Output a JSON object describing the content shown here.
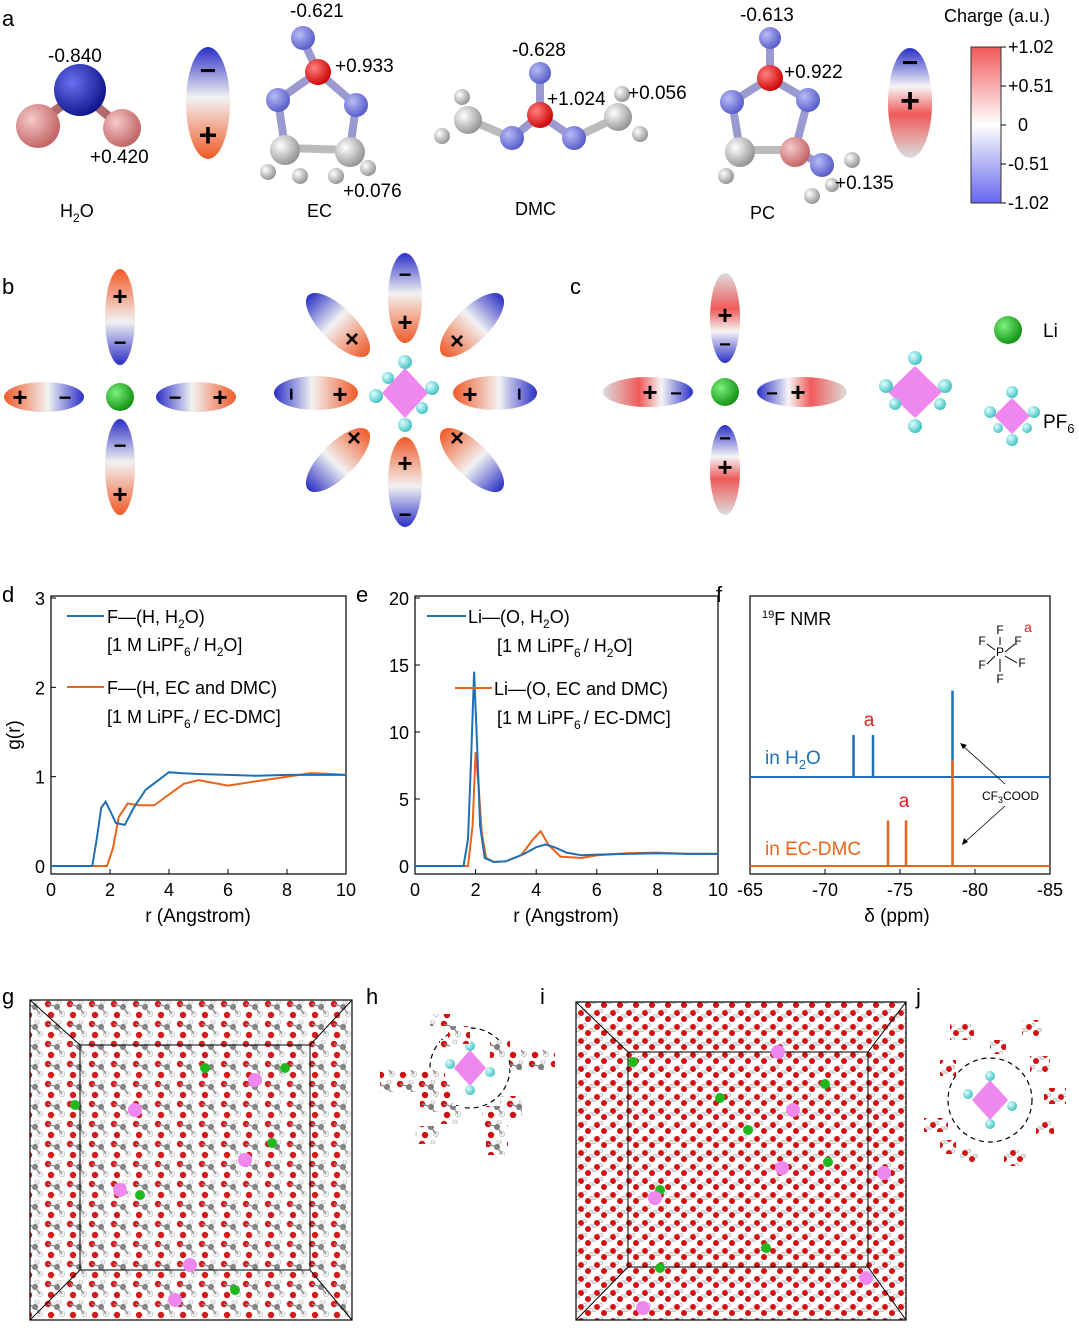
{
  "panel_labels": {
    "a": "a",
    "b": "b",
    "c": "c",
    "d": "d",
    "e": "e",
    "f": "f",
    "g": "g",
    "h": "h",
    "i": "i",
    "j": "j"
  },
  "colors": {
    "blue_series": "#1f6fb4",
    "orange_series": "#e8641c",
    "neg": "#2a2fc6",
    "pos": "#f05a28",
    "anno_red": "#e0201b",
    "li": "#1fb81f",
    "pf6_core": "#ee88ee",
    "pf6_f": "#7fe6e6"
  },
  "molecules": {
    "h2o": {
      "name": "H",
      "sub": "2",
      "name2": "O",
      "charges": [
        "-0.840",
        "+0.420"
      ]
    },
    "ec": {
      "name": "EC",
      "charges": [
        "-0.621",
        "+0.933",
        "+0.076"
      ]
    },
    "dmc": {
      "name": "DMC",
      "charges": [
        "-0.628",
        "+1.024",
        "+0.056"
      ]
    },
    "pc": {
      "name": "PC",
      "charges": [
        "-0.613",
        "+0.922",
        "+0.135"
      ]
    }
  },
  "colorbar": {
    "title": "Charge (a.u.)",
    "ticks": [
      "+1.02",
      "+0.51",
      "0",
      "-0.51",
      "-1.02"
    ]
  },
  "dipole_symbols": {
    "plus": "+",
    "minus": "−",
    "cross": "×"
  },
  "legend_species": {
    "li": "Li",
    "pf6": "PF",
    "pf6_sub": "6"
  },
  "chart_data": [
    {
      "id": "d",
      "type": "line",
      "xlabel": "r (Angstrom)",
      "ylabel": "g(r)",
      "xlim": [
        0,
        10
      ],
      "ylim": [
        0,
        3
      ],
      "xticks": [
        0,
        2,
        4,
        6,
        8,
        10
      ],
      "yticks": [
        0,
        1,
        2,
        3
      ],
      "series": [
        {
          "legend_l1": "F—(H, H",
          "legend_l1_sub": "2",
          "legend_l1_end": "O)",
          "legend_l2": "[1 M LiPF",
          "legend_l2_sub": "6",
          "legend_l2_end": "/ H",
          "legend_l2_sub2": "2",
          "legend_l2_end2": "O]",
          "x": [
            0,
            1.4,
            1.55,
            1.7,
            1.85,
            2.0,
            2.2,
            2.5,
            2.8,
            3.2,
            3.6,
            4.0,
            4.4,
            5.0,
            6.0,
            7.0,
            8.0,
            9.0,
            10.0
          ],
          "y": [
            0,
            0,
            0.3,
            0.65,
            0.72,
            0.62,
            0.48,
            0.46,
            0.65,
            0.85,
            0.95,
            1.05,
            1.04,
            1.03,
            1.02,
            1.01,
            1.02,
            1.02,
            1.02
          ]
        },
        {
          "legend_l1": "F—(H, EC and DMC)",
          "legend_l2": "[1 M LiPF",
          "legend_l2_sub": "6",
          "legend_l2_end": "/ EC-DMC]",
          "x": [
            0,
            1.9,
            2.1,
            2.3,
            2.6,
            3.0,
            3.5,
            4.0,
            4.5,
            5.0,
            5.5,
            6.0,
            7.0,
            8.0,
            8.8,
            9.5,
            10.0
          ],
          "y": [
            0,
            0,
            0.2,
            0.55,
            0.7,
            0.68,
            0.68,
            0.8,
            0.92,
            0.96,
            0.93,
            0.9,
            0.95,
            1.0,
            1.04,
            1.03,
            1.02
          ]
        }
      ]
    },
    {
      "id": "e",
      "type": "line",
      "xlabel": "r (Angstrom)",
      "ylabel": "",
      "xlim": [
        0,
        10
      ],
      "ylim": [
        0,
        20
      ],
      "xticks": [
        0,
        2,
        4,
        6,
        8,
        10
      ],
      "yticks": [
        0,
        5,
        10,
        15,
        20
      ],
      "series": [
        {
          "legend_l1": "Li—(O, H",
          "legend_l1_sub": "2",
          "legend_l1_end": "O)",
          "legend_l2": "[1 M LiPF",
          "legend_l2_sub": "6",
          "legend_l2_end": "/ H",
          "legend_l2_sub2": "2",
          "legend_l2_end2": "O]",
          "x": [
            0,
            1.6,
            1.75,
            1.85,
            1.95,
            2.05,
            2.15,
            2.3,
            2.6,
            3.0,
            3.6,
            4.0,
            4.3,
            4.6,
            5.0,
            5.5,
            6.0,
            7.0,
            8.0,
            9.0,
            10.0
          ],
          "y": [
            0,
            0,
            2,
            8,
            14.5,
            9,
            3,
            0.6,
            0.3,
            0.35,
            0.9,
            1.4,
            1.6,
            1.4,
            1.0,
            0.8,
            0.85,
            0.9,
            0.95,
            0.9,
            0.9
          ]
        },
        {
          "legend_l1": "Li—(O, EC and DMC)",
          "legend_l2": "[1 M LiPF",
          "legend_l2_sub": "6",
          "legend_l2_end": "/ EC-DMC]",
          "x": [
            0,
            1.75,
            1.9,
            2.0,
            2.1,
            2.2,
            2.35,
            2.6,
            3.0,
            3.5,
            3.9,
            4.15,
            4.4,
            4.8,
            5.5,
            6.0,
            7.0,
            8.0,
            9.0,
            10.0
          ],
          "y": [
            0,
            0,
            3,
            8.5,
            6,
            2.5,
            0.6,
            0.3,
            0.35,
            0.8,
            2.0,
            2.6,
            1.6,
            0.7,
            0.6,
            0.8,
            0.95,
            1.0,
            0.9,
            0.9
          ]
        }
      ]
    },
    {
      "id": "f",
      "type": "line",
      "xlabel": "δ  (ppm)",
      "ylabel": "",
      "xlim": [
        -65,
        -85
      ],
      "xticks": [
        -65,
        -70,
        -75,
        -80,
        -85
      ],
      "nmr_title_sup": "19",
      "nmr_title": "F NMR",
      "peak_label": "a",
      "struct_atoms": {
        "center": "P",
        "f": "F",
        "label": "a"
      },
      "reference": {
        "pre": "CF",
        "sub": "3",
        "post": "COOD"
      },
      "series": [
        {
          "name": "in H",
          "name_sub": "2",
          "name_end": "O",
          "peaks": [
            -71.9,
            -73.2,
            -78.5
          ],
          "heights": [
            0.35,
            0.35,
            0.72
          ]
        },
        {
          "name": "in EC-DMC",
          "peaks": [
            -74.2,
            -75.4,
            -78.5
          ],
          "heights": [
            0.38,
            0.38,
            0.88
          ]
        }
      ]
    }
  ]
}
